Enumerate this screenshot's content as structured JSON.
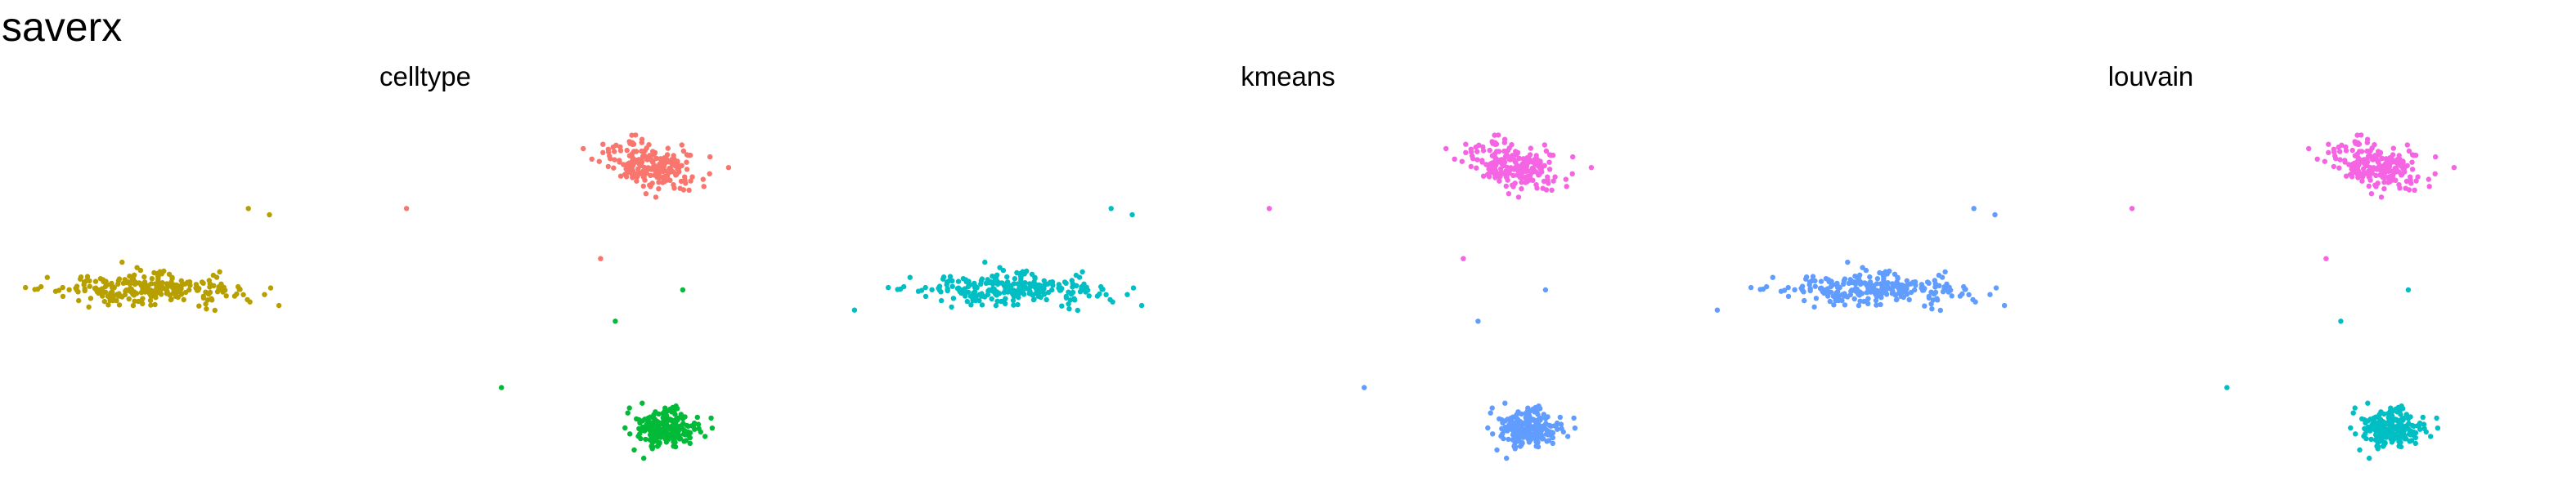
{
  "title": "saverx",
  "chart_data": [
    {
      "type": "scatter",
      "title": "celltype",
      "xlim": [
        -2.2,
        1.6
      ],
      "ylim": [
        -1.5,
        1.5
      ],
      "grid": false,
      "axes": false,
      "legend": "none",
      "series": [
        {
          "color": "#F8766D",
          "clusters": [
            {
              "cx": 0.8,
              "cy": 1.0,
              "sx": 0.12,
              "sy": 0.08,
              "n": 210,
              "tilt": -0.6
            }
          ],
          "stray": [
            [
              -0.35,
              0.65
            ],
            [
              0.57,
              0.25
            ]
          ]
        },
        {
          "color": "#B79F00",
          "clusters": [
            {
              "cx": -1.6,
              "cy": 0.0,
              "sx": 0.22,
              "sy": 0.06,
              "n": 260,
              "tilt": 0
            }
          ],
          "stray": [
            [
              -1.0,
              0.6
            ],
            [
              -1.1,
              0.65
            ]
          ]
        },
        {
          "color": "#00BA38",
          "clusters": [
            {
              "cx": 0.88,
              "cy": -1.1,
              "sx": 0.07,
              "sy": 0.07,
              "n": 220,
              "tilt": 0
            }
          ],
          "stray": [
            [
              0.64,
              -0.25
            ],
            [
              0.96,
              0.0
            ],
            [
              0.1,
              -0.78
            ]
          ]
        }
      ]
    },
    {
      "type": "scatter",
      "title": "kmeans",
      "xlim": [
        -2.2,
        1.6
      ],
      "ylim": [
        -1.5,
        1.5
      ],
      "grid": false,
      "axes": false,
      "legend": "none",
      "series": [
        {
          "color": "#F564E3",
          "clusters": [
            {
              "cx": 0.8,
              "cy": 1.0,
              "sx": 0.12,
              "sy": 0.08,
              "n": 210,
              "tilt": -0.6
            }
          ],
          "stray": [
            [
              -0.35,
              0.65
            ],
            [
              0.57,
              0.25
            ]
          ]
        },
        {
          "color": "#00BFC4",
          "clusters": [
            {
              "cx": -1.6,
              "cy": 0.0,
              "sx": 0.22,
              "sy": 0.06,
              "n": 260,
              "tilt": 0
            }
          ],
          "stray": [
            [
              -1.0,
              0.6
            ],
            [
              -1.1,
              0.65
            ]
          ]
        },
        {
          "color": "#619CFF",
          "clusters": [
            {
              "cx": 0.88,
              "cy": -1.1,
              "sx": 0.07,
              "sy": 0.07,
              "n": 220,
              "tilt": 0
            }
          ],
          "stray": [
            [
              0.64,
              -0.25
            ],
            [
              0.96,
              0.0
            ],
            [
              0.1,
              -0.78
            ]
          ]
        }
      ]
    },
    {
      "type": "scatter",
      "title": "louvain",
      "xlim": [
        -2.2,
        1.6
      ],
      "ylim": [
        -1.5,
        1.5
      ],
      "grid": false,
      "axes": false,
      "legend": "none",
      "series": [
        {
          "color": "#F564E3",
          "clusters": [
            {
              "cx": 0.8,
              "cy": 1.0,
              "sx": 0.12,
              "sy": 0.08,
              "n": 210,
              "tilt": -0.6
            }
          ],
          "stray": [
            [
              -0.35,
              0.65
            ],
            [
              0.57,
              0.25
            ]
          ]
        },
        {
          "color": "#619CFF",
          "clusters": [
            {
              "cx": -1.6,
              "cy": 0.0,
              "sx": 0.22,
              "sy": 0.06,
              "n": 260,
              "tilt": 0
            }
          ],
          "stray": [
            [
              -1.0,
              0.6
            ],
            [
              -1.1,
              0.65
            ]
          ]
        },
        {
          "color": "#00BFC4",
          "clusters": [
            {
              "cx": 0.88,
              "cy": -1.1,
              "sx": 0.07,
              "sy": 0.07,
              "n": 220,
              "tilt": 0
            }
          ],
          "stray": [
            [
              0.64,
              -0.25
            ],
            [
              0.96,
              0.0
            ],
            [
              0.1,
              -0.78
            ]
          ]
        }
      ]
    }
  ]
}
